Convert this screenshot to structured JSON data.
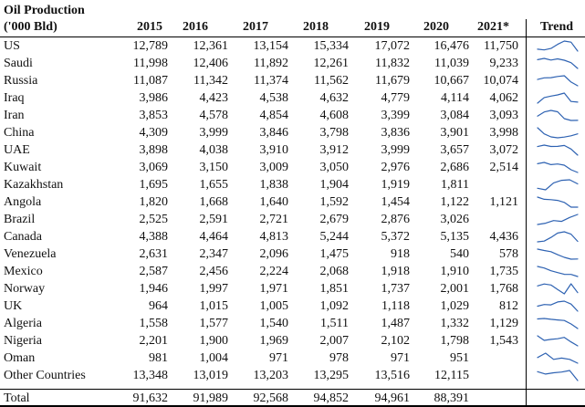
{
  "table": {
    "title_line1": "Oil Production",
    "title_line2": "('000 Bld)",
    "columns": [
      "2015",
      "2016",
      "2017",
      "2018",
      "2019",
      "2020",
      "2021*"
    ],
    "trend_label": "Trend",
    "rows": [
      {
        "country": "US",
        "values": [
          "12,789",
          "12,361",
          "13,154",
          "15,334",
          "17,072",
          "16,476",
          "11,750"
        ]
      },
      {
        "country": "Saudi",
        "values": [
          "11,998",
          "12,406",
          "11,892",
          "12,261",
          "11,832",
          "11,039",
          "9,233"
        ]
      },
      {
        "country": "Russia",
        "values": [
          "11,087",
          "11,342",
          "11,374",
          "11,562",
          "11,679",
          "10,667",
          "10,074"
        ]
      },
      {
        "country": "Iraq",
        "values": [
          "3,986",
          "4,423",
          "4,538",
          "4,632",
          "4,779",
          "4,114",
          "4,062"
        ]
      },
      {
        "country": "Iran",
        "values": [
          "3,853",
          "4,578",
          "4,854",
          "4,608",
          "3,399",
          "3,084",
          "3,093"
        ]
      },
      {
        "country": "China",
        "values": [
          "4,309",
          "3,999",
          "3,846",
          "3,798",
          "3,836",
          "3,901",
          "3,998"
        ]
      },
      {
        "country": "UAE",
        "values": [
          "3,898",
          "4,038",
          "3,910",
          "3,912",
          "3,999",
          "3,657",
          "3,072"
        ]
      },
      {
        "country": "Kuwait",
        "values": [
          "3,069",
          "3,150",
          "3,009",
          "3,050",
          "2,976",
          "2,686",
          "2,514"
        ]
      },
      {
        "country": "Kazakhstan",
        "values": [
          "1,695",
          "1,655",
          "1,838",
          "1,904",
          "1,919",
          "1,811",
          ""
        ]
      },
      {
        "country": "Angola",
        "values": [
          "1,820",
          "1,668",
          "1,640",
          "1,592",
          "1,454",
          "1,122",
          "1,121"
        ]
      },
      {
        "country": "Brazil",
        "values": [
          "2,525",
          "2,591",
          "2,721",
          "2,679",
          "2,876",
          "3,026",
          ""
        ]
      },
      {
        "country": "Canada",
        "values": [
          "4,388",
          "4,464",
          "4,813",
          "5,244",
          "5,372",
          "5,135",
          "4,436"
        ]
      },
      {
        "country": "Venezuela",
        "values": [
          "2,631",
          "2,347",
          "2,096",
          "1,475",
          "918",
          "540",
          "578"
        ]
      },
      {
        "country": "Mexico",
        "values": [
          "2,587",
          "2,456",
          "2,224",
          "2,068",
          "1,918",
          "1,910",
          "1,735"
        ]
      },
      {
        "country": "Norway",
        "values": [
          "1,946",
          "1,997",
          "1,971",
          "1,851",
          "1,737",
          "2,001",
          "1,768"
        ]
      },
      {
        "country": "UK",
        "values": [
          "964",
          "1,015",
          "1,005",
          "1,092",
          "1,118",
          "1,029",
          "812"
        ]
      },
      {
        "country": "Algeria",
        "values": [
          "1,558",
          "1,577",
          "1,540",
          "1,511",
          "1,487",
          "1,332",
          "1,129"
        ]
      },
      {
        "country": "Nigeria",
        "values": [
          "2,201",
          "1,900",
          "1,969",
          "2,007",
          "2,102",
          "1,798",
          "1,543"
        ]
      },
      {
        "country": "Oman",
        "values": [
          "981",
          "1,004",
          "971",
          "978",
          "971",
          "951",
          ""
        ]
      },
      {
        "country": "Other Countries",
        "values": [
          "13,348",
          "13,019",
          "13,203",
          "13,295",
          "13,516",
          "12,115",
          ""
        ]
      }
    ],
    "total": {
      "country": "Total",
      "values": [
        "91,632",
        "91,989",
        "92,568",
        "94,852",
        "94,961",
        "88,391",
        ""
      ]
    }
  },
  "colors": {
    "sparkline": "#2e62b2",
    "rules": "#000000"
  }
}
